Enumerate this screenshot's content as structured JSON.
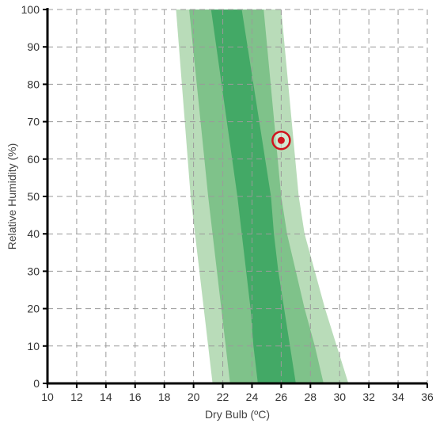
{
  "chart_data": {
    "type": "area",
    "xlabel": "Dry Bulb (ºC)",
    "ylabel": "Relative Humidity (%)",
    "xlim": [
      10,
      36
    ],
    "ylim": [
      0,
      100
    ],
    "xticks": [
      10,
      12,
      14,
      16,
      18,
      20,
      22,
      24,
      26,
      28,
      30,
      32,
      34,
      36
    ],
    "yticks": [
      0,
      10,
      20,
      30,
      40,
      50,
      60,
      70,
      80,
      90,
      100
    ],
    "grid": true,
    "colors": {
      "outer_band": "#b9dcb9",
      "middle_band": "#7fc28a",
      "inner_band": "#43a966",
      "marker": "#d0141e"
    },
    "bands": [
      {
        "level": "outer",
        "rh": [
          100,
          50,
          40,
          30,
          20,
          10,
          0
        ],
        "lower_db": [
          18.8,
          19.8,
          20.1,
          20.4,
          20.7,
          21.0,
          21.3
        ],
        "upper_db": [
          26.0,
          27.2,
          27.6,
          28.3,
          29.0,
          29.8,
          30.6
        ]
      },
      {
        "level": "middle",
        "rh": [
          100,
          50,
          40,
          30,
          20,
          10,
          0
        ],
        "lower_db": [
          19.7,
          21.0,
          21.3,
          21.6,
          21.9,
          22.2,
          22.5
        ],
        "upper_db": [
          24.8,
          26.0,
          26.4,
          27.0,
          27.6,
          28.3,
          28.9
        ]
      },
      {
        "level": "inner",
        "rh": [
          100,
          50,
          40,
          30,
          20,
          10,
          0
        ],
        "lower_db": [
          21.2,
          23.0,
          23.3,
          23.6,
          23.9,
          24.1,
          24.4
        ],
        "upper_db": [
          23.3,
          25.3,
          25.5,
          25.8,
          26.2,
          26.6,
          27.0
        ]
      }
    ],
    "point": {
      "x": 26.0,
      "y": 65
    }
  }
}
